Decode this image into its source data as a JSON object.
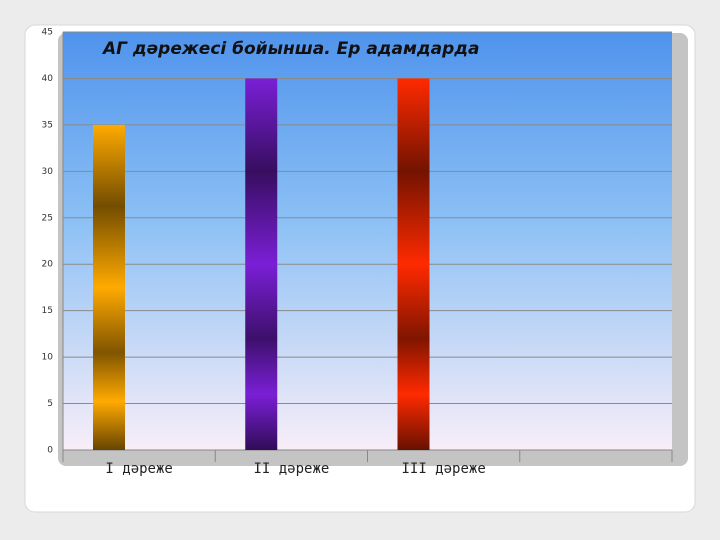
{
  "chart_data": {
    "type": "bar",
    "title": "АГ дәрежесі бойынша. Ер адамдарда",
    "categories": [
      "І дәреже",
      "ІІ дәреже",
      "ІІІ дәреже",
      null
    ],
    "values": [
      35,
      40,
      40,
      null
    ],
    "colors": [
      "#ffaa00",
      "#7a1fd6",
      "#ff2a00"
    ],
    "ylim": [
      0,
      45
    ],
    "yticks": [
      0,
      5,
      10,
      15,
      20,
      25,
      30,
      35,
      40,
      45
    ],
    "grid": true
  }
}
